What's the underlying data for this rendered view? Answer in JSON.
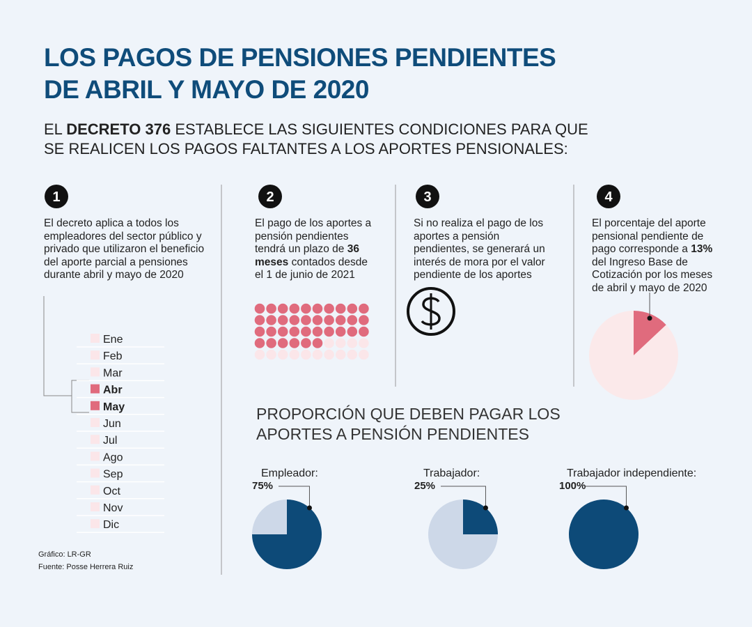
{
  "header": {
    "title_lines": [
      "LOS PAGOS DE PENSIONES PENDIENTES",
      "DE ABRIL Y MAYO DE 2020"
    ],
    "subtitle_line1": [
      {
        "text": "EL",
        "bold": false
      },
      {
        "text": "DECRETO 376",
        "bold": true
      },
      {
        "text": "ESTABLECE LAS SIGUIENTES CONDICIONES PARA QUE",
        "bold": false
      }
    ],
    "subtitle_line2": "SE REALICEN LOS PAGOS FALTANTES A LOS APORTES PENSIONALES:"
  },
  "steps": [
    {
      "number": "1",
      "text": [
        {
          "text": "El decreto aplica a todos los empleadores del sector público y privado que utilizaron el beneficio del aporte parcial a pensiones durante abril y mayo de 2020",
          "bold": false
        }
      ]
    },
    {
      "number": "2",
      "text": [
        {
          "text": "El pago de los aportes a pensión pendientes tendrá un plazo de",
          "bold": false
        },
        {
          "text": "36 meses",
          "bold": true
        },
        {
          "text": "contados desde el 1 de junio de 2021",
          "bold": false
        }
      ],
      "waffle": {
        "filled": 36,
        "total": 50,
        "color": "#e06b7d",
        "empty_color": "#fbe6e9"
      }
    },
    {
      "number": "3",
      "text": [
        {
          "text": "Si  no realiza el pago de los aportes a pensión pendientes, se generará un interés de mora por el valor pendiente de los aportes",
          "bold": false
        }
      ]
    },
    {
      "number": "4",
      "text": [
        {
          "text": "El porcentaje del aporte pensional pendiente de pago corresponde a",
          "bold": false
        },
        {
          "text": "13%",
          "bold": true
        },
        {
          "text": "del Ingreso Base de Cotización por los meses de abril y mayo de 2020",
          "bold": false
        }
      ],
      "pie": {
        "value": 13,
        "color": "#e06b7d",
        "rest_color": "#fbe9ea"
      }
    }
  ],
  "months": [
    {
      "label": "Ene",
      "highlight": false
    },
    {
      "label": "Feb",
      "highlight": false
    },
    {
      "label": "Mar",
      "highlight": false
    },
    {
      "label": "Abr",
      "highlight": true
    },
    {
      "label": "May",
      "highlight": true
    },
    {
      "label": "Jun",
      "highlight": false
    },
    {
      "label": "Jul",
      "highlight": false
    },
    {
      "label": "Ago",
      "highlight": false
    },
    {
      "label": "Sep",
      "highlight": false
    },
    {
      "label": "Oct",
      "highlight": false
    },
    {
      "label": "Nov",
      "highlight": false
    },
    {
      "label": "Dic",
      "highlight": false
    }
  ],
  "proportion": {
    "title_lines": [
      "PROPORCIÓN QUE DEBEN PAGAR LOS",
      "APORTES A PENSIÓN PENDIENTES"
    ],
    "color": "#0d4a78",
    "rest_color": "#cdd8e8",
    "pies": [
      {
        "label": "Empleador:",
        "value": 75,
        "value_label": "75%"
      },
      {
        "label": "Trabajador:",
        "value": 25,
        "value_label": "25%"
      },
      {
        "label": "Trabajador independiente:",
        "value": 100,
        "value_label": "100%"
      }
    ]
  },
  "footer": {
    "graphic": "Gráfico: LR-GR",
    "source": "Fuente: Posse Herrera Ruiz"
  }
}
